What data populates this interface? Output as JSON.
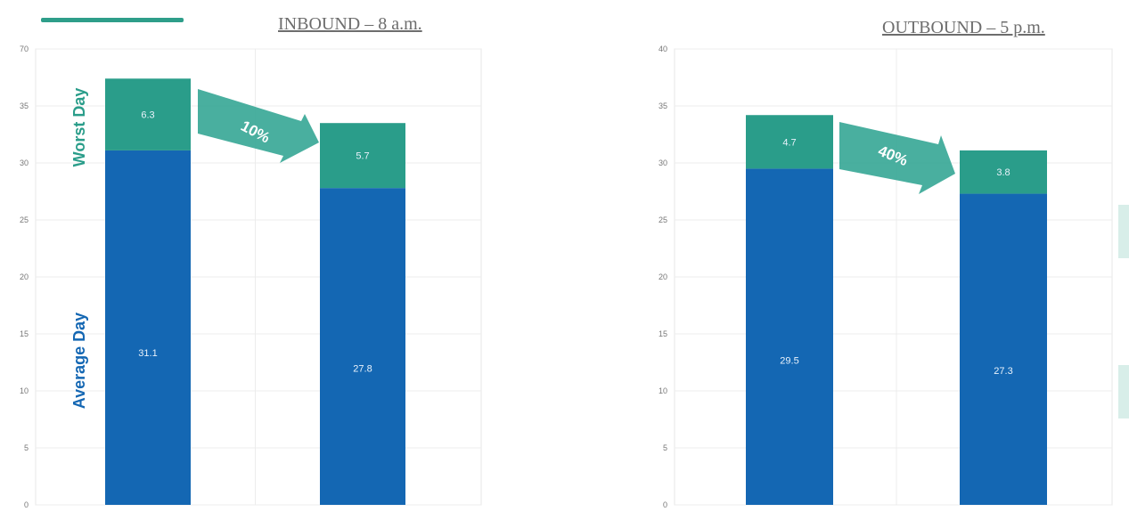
{
  "chart_data": [
    {
      "type": "bar",
      "title": "INBOUND – 8 a.m.",
      "stacked": true,
      "ylim": [
        0,
        70
      ],
      "yticks": [
        "0",
        "5",
        "10",
        "15",
        "20",
        "25",
        "30",
        "35",
        "70"
      ],
      "categories": [
        "",
        ""
      ],
      "series": [
        {
          "name": "Average Day",
          "color": "#1467b3",
          "values": [
            31.1,
            27.8
          ],
          "labels": [
            "31.1",
            "27.8"
          ]
        },
        {
          "name": "Worst Day",
          "color": "#2a9d8a",
          "values": [
            6.3,
            5.7
          ],
          "labels": [
            "6.3",
            "5.7"
          ]
        }
      ],
      "arrow_label": "10%",
      "grid": true
    },
    {
      "type": "bar",
      "title": "OUTBOUND – 5 p.m.",
      "stacked": true,
      "ylim": [
        0,
        40
      ],
      "yticks": [
        "0",
        "5",
        "10",
        "15",
        "20",
        "25",
        "30",
        "35",
        "40"
      ],
      "categories": [
        "",
        ""
      ],
      "series": [
        {
          "name": "Average Day",
          "color": "#1467b3",
          "values": [
            29.5,
            27.3
          ],
          "labels": [
            "29.5",
            "27.3"
          ]
        },
        {
          "name": "Worst Day",
          "color": "#2a9d8a",
          "values": [
            4.7,
            3.8
          ],
          "labels": [
            "4.7",
            "3.8"
          ]
        }
      ],
      "arrow_label": "40%",
      "grid": true
    }
  ]
}
